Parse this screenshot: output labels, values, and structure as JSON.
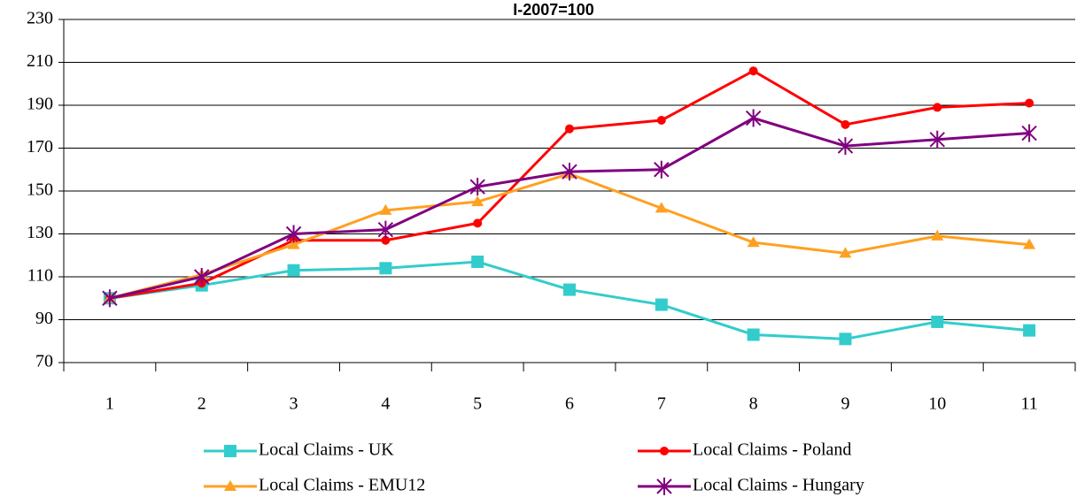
{
  "chart_data": {
    "type": "line",
    "title": "I-2007=100",
    "categories": [
      "1",
      "2",
      "3",
      "4",
      "5",
      "6",
      "7",
      "8",
      "9",
      "10",
      "11"
    ],
    "ylim": [
      70,
      230
    ],
    "yticks": [
      70,
      90,
      110,
      130,
      150,
      170,
      190,
      210,
      230
    ],
    "grid": true,
    "legend": "bottom",
    "series": [
      {
        "name": "Local Claims - UK",
        "color": "#33cccc",
        "marker": "square",
        "values": [
          100,
          106,
          113,
          114,
          117,
          104,
          97,
          83,
          81,
          89,
          85
        ]
      },
      {
        "name": "Local Claims - Poland",
        "color": "#ff0000",
        "marker": "circle",
        "values": [
          100,
          107,
          127,
          127,
          135,
          179,
          183,
          206,
          181,
          189,
          191
        ]
      },
      {
        "name": "Local Claims - EMU12",
        "color": "#ffa020",
        "marker": "triangle",
        "values": [
          100,
          111,
          125,
          141,
          145,
          158,
          142,
          126,
          121,
          129,
          125
        ]
      },
      {
        "name": "Local Claims - Hungary",
        "color": "#800080",
        "marker": "star",
        "values": [
          100,
          110,
          130,
          132,
          152,
          159,
          160,
          184,
          171,
          174,
          177
        ]
      }
    ]
  }
}
